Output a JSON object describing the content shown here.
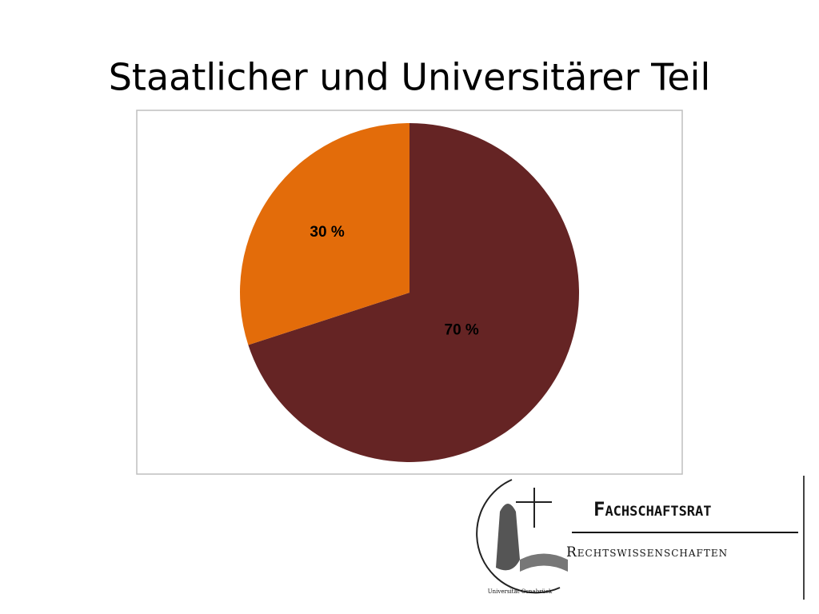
{
  "chart_data": {
    "type": "pie",
    "title": "Staatlicher und Universitärer Teil",
    "values": [
      70,
      30
    ],
    "value_labels": [
      "70 %",
      "30 %"
    ],
    "colors": [
      "#652424",
      "#e36c0a"
    ]
  },
  "logo": {
    "title": "Fachschaftsrat",
    "subtitle": "Rechtswissenschaften",
    "seal": "Universität Osnabrück"
  }
}
